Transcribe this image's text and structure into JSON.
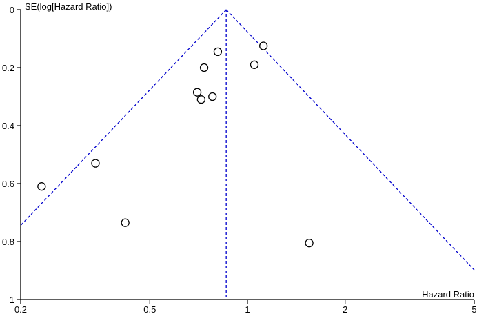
{
  "colors": {
    "axis": "#000000",
    "points": "#000000",
    "funnel": "#0000cc",
    "background": "#ffffff"
  },
  "chart_data": {
    "type": "scatter",
    "title": "",
    "xlabel": "Hazard Ratio",
    "ylabel": "SE(log[Hazard Ratio])",
    "x_scale": "log",
    "y_inverted": true,
    "xlim": [
      0.2,
      5
    ],
    "ylim": [
      0,
      1
    ],
    "x_ticks": [
      0.2,
      0.5,
      1,
      2,
      5
    ],
    "x_tick_labels": [
      "0.2",
      "0.5",
      "1",
      "2",
      "5"
    ],
    "y_ticks": [
      0,
      0.2,
      0.4,
      0.6,
      0.8,
      1
    ],
    "y_tick_labels": [
      "0",
      "0.2",
      "0.4",
      "0.6",
      "0.8",
      "1"
    ],
    "grid": false,
    "pooled_estimate": 0.86,
    "funnel": "pseudo 95% confidence limits (dashed)",
    "points": [
      {
        "x": 0.232,
        "y": 0.61
      },
      {
        "x": 0.34,
        "y": 0.53
      },
      {
        "x": 0.42,
        "y": 0.735
      },
      {
        "x": 0.7,
        "y": 0.285
      },
      {
        "x": 0.72,
        "y": 0.31
      },
      {
        "x": 0.735,
        "y": 0.2
      },
      {
        "x": 0.78,
        "y": 0.3
      },
      {
        "x": 0.81,
        "y": 0.145
      },
      {
        "x": 1.05,
        "y": 0.19
      },
      {
        "x": 1.12,
        "y": 0.125
      },
      {
        "x": 1.55,
        "y": 0.805
      }
    ]
  }
}
